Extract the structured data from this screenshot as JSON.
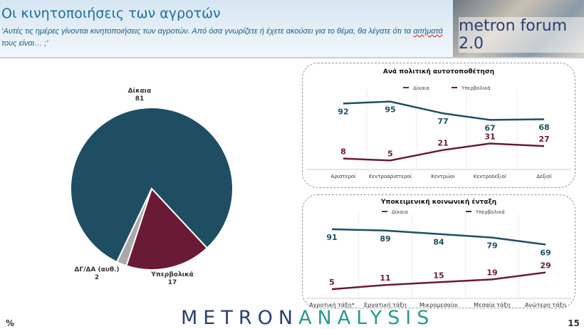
{
  "header": {
    "title": "Οι κινητοποιήσεις των αγροτών",
    "question_a": "‘Αυτές τις ημέρες γίνονται κινητοποιήσεις των αγροτών. Από όσα γνωρίζετε ή έχετε ακούσει για το θέμα, θα λέγατε ότι τα ",
    "question_u": "αιτήματά",
    "question_b": " τους είναι… ;’",
    "logo": "metron forum 2.0"
  },
  "footer": {
    "brand_a": "METRON",
    "brand_b": "ANALYSIS",
    "unit": "%",
    "page": "15"
  },
  "colors": {
    "dikaia": "#1f4e63",
    "ypervolika": "#6b1a35",
    "dgda": "#a9a9a9"
  },
  "chart_data": [
    {
      "type": "pie",
      "labels": [
        "Δίκαια",
        "Υπερβολικά",
        "ΔΓ/ΔΑ (αυθ.)"
      ],
      "values": [
        81,
        17,
        2
      ]
    },
    {
      "type": "line",
      "title": "Ανά πολιτική αυτοτοποθέτηση",
      "categories": [
        "Αριστεροί",
        "Κεντροαριστεροί",
        "Κεντρώοι",
        "Κεντροδεξιοί",
        "Δεξιοί"
      ],
      "series": [
        {
          "name": "Δίκαια",
          "values": [
            92,
            95,
            77,
            67,
            68
          ]
        },
        {
          "name": "Υπερβολικά",
          "values": [
            8,
            5,
            21,
            31,
            27
          ]
        }
      ]
    },
    {
      "type": "line",
      "title": "Υποκειμενική κοινωνική ένταξη",
      "categories": [
        "Αγροτική τάξη*",
        "Εργατική τάξη",
        "Μικρομεσαίοι",
        "Μεσαία τάξη",
        "Ανώτερη τάξη"
      ],
      "series": [
        {
          "name": "Δίκαια",
          "values": [
            91,
            89,
            84,
            79,
            69
          ]
        },
        {
          "name": "Υπερβολικά",
          "values": [
            5,
            11,
            15,
            19,
            29
          ]
        }
      ]
    }
  ]
}
